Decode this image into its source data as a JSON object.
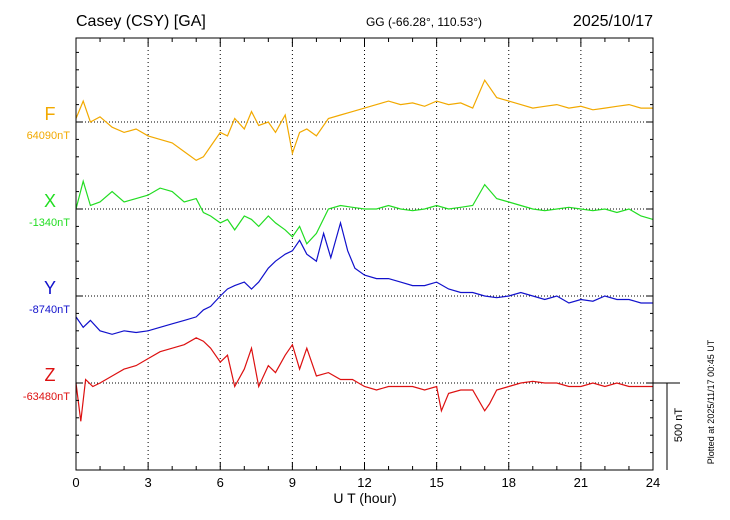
{
  "chart_data": {
    "type": "line",
    "station": "Casey (CSY)  [GA]",
    "coords": "GG (-66.28°, 110.53°)",
    "date": "2025/10/17",
    "xlabel": "U T (hour)",
    "xlim": [
      0,
      24
    ],
    "x_ticks": [
      "0",
      "3",
      "6",
      "9",
      "12",
      "15",
      "18",
      "21",
      "24"
    ],
    "plotted": "Plotted at 2025/11/17 00:45 UT",
    "scale_label": "500 nT",
    "series": [
      {
        "name": "F",
        "baseline_label": "64090nT",
        "color": "#f2a900",
        "x": [
          0,
          0.3,
          0.6,
          1,
          1.5,
          2,
          2.5,
          3,
          3.5,
          4,
          4.5,
          5,
          5.3,
          5.6,
          6,
          6.3,
          6.6,
          7,
          7.3,
          7.6,
          8,
          8.3,
          8.7,
          9,
          9.3,
          9.6,
          10,
          10.5,
          11,
          11.5,
          12,
          12.5,
          13,
          13.5,
          14,
          14.5,
          15,
          15.5,
          16,
          16.5,
          17,
          17.5,
          18,
          18.5,
          19,
          19.5,
          20,
          20.5,
          21,
          21.5,
          22,
          22.5,
          23,
          23.5,
          24
        ],
        "y": [
          20,
          120,
          0,
          30,
          -30,
          -60,
          -40,
          -80,
          -100,
          -120,
          -170,
          -220,
          -200,
          -140,
          -60,
          -80,
          20,
          -40,
          60,
          -20,
          0,
          -60,
          40,
          -180,
          -60,
          -40,
          -80,
          20,
          40,
          60,
          80,
          100,
          120,
          100,
          110,
          90,
          120,
          100,
          110,
          80,
          240,
          140,
          120,
          100,
          80,
          90,
          100,
          80,
          90,
          70,
          80,
          90,
          100,
          80,
          80
        ]
      },
      {
        "name": "X",
        "baseline_label": "-1340nT",
        "color": "#22dd22",
        "x": [
          0,
          0.3,
          0.6,
          1,
          1.5,
          2,
          2.5,
          3,
          3.5,
          4,
          4.5,
          5,
          5.3,
          5.6,
          6,
          6.3,
          6.6,
          7,
          7.3,
          7.6,
          8,
          8.3,
          8.7,
          9,
          9.3,
          9.6,
          10,
          10.5,
          11,
          11.5,
          12,
          12.5,
          13,
          13.5,
          14,
          14.5,
          15,
          15.5,
          16,
          16.5,
          17,
          17.5,
          18,
          18.5,
          19,
          19.5,
          20,
          20.5,
          21,
          21.5,
          22,
          22.5,
          23,
          23.5,
          24
        ],
        "y": [
          0,
          160,
          20,
          40,
          100,
          40,
          60,
          80,
          120,
          100,
          40,
          60,
          -20,
          -40,
          -80,
          -60,
          -120,
          -40,
          -60,
          -100,
          -40,
          -80,
          -120,
          -160,
          -100,
          -200,
          -140,
          0,
          20,
          10,
          0,
          0,
          20,
          0,
          -10,
          0,
          20,
          0,
          10,
          20,
          140,
          60,
          40,
          20,
          0,
          -10,
          0,
          10,
          0,
          -10,
          0,
          -20,
          0,
          -40,
          -60
        ]
      },
      {
        "name": "Y",
        "baseline_label": "-8740nT",
        "color": "#1111cc",
        "x": [
          0,
          0.3,
          0.6,
          1,
          1.5,
          2,
          2.5,
          3,
          3.5,
          4,
          4.5,
          5,
          5.3,
          5.6,
          6,
          6.3,
          6.6,
          7,
          7.3,
          7.6,
          8,
          8.3,
          8.7,
          9,
          9.3,
          9.6,
          10,
          10.3,
          10.6,
          11,
          11.3,
          11.6,
          12,
          12.5,
          13,
          13.5,
          14,
          14.5,
          15,
          15.5,
          16,
          16.5,
          17,
          17.5,
          18,
          18.5,
          19,
          19.5,
          20,
          20.5,
          21,
          21.5,
          22,
          22.5,
          23,
          23.5,
          24
        ],
        "y": [
          -120,
          -180,
          -140,
          -200,
          -220,
          -200,
          -210,
          -200,
          -180,
          -160,
          -140,
          -120,
          -80,
          -60,
          0,
          40,
          60,
          80,
          40,
          80,
          160,
          200,
          240,
          260,
          320,
          240,
          200,
          360,
          220,
          420,
          260,
          160,
          120,
          100,
          100,
          80,
          60,
          60,
          80,
          40,
          20,
          20,
          0,
          -10,
          0,
          20,
          0,
          -20,
          0,
          -40,
          -20,
          -30,
          0,
          -20,
          -20,
          -40,
          -40
        ]
      },
      {
        "name": "Z",
        "baseline_label": "-63480nT",
        "color": "#dd1111",
        "x": [
          0,
          0.2,
          0.4,
          0.7,
          1,
          1.5,
          2,
          2.5,
          3,
          3.5,
          4,
          4.5,
          5,
          5.3,
          5.6,
          6,
          6.3,
          6.6,
          7,
          7.3,
          7.6,
          8,
          8.3,
          8.7,
          9,
          9.3,
          9.6,
          10,
          10.5,
          11,
          11.5,
          12,
          12.5,
          13,
          13.5,
          14,
          14.5,
          15,
          15.2,
          15.5,
          16,
          16.5,
          17,
          17.2,
          17.5,
          18,
          18.5,
          19,
          19.5,
          20,
          20.5,
          21,
          21.5,
          22,
          22.5,
          23,
          23.5,
          24
        ],
        "y": [
          0,
          -220,
          20,
          -20,
          0,
          40,
          80,
          100,
          140,
          180,
          200,
          220,
          260,
          240,
          200,
          120,
          160,
          -20,
          80,
          200,
          -20,
          100,
          60,
          160,
          220,
          80,
          200,
          40,
          60,
          20,
          20,
          -20,
          -40,
          -20,
          -20,
          -20,
          -40,
          -20,
          -160,
          -60,
          -40,
          -40,
          -160,
          -120,
          -40,
          -20,
          0,
          10,
          0,
          0,
          -20,
          -20,
          0,
          -20,
          0,
          -20,
          -20,
          -20
        ]
      }
    ]
  }
}
